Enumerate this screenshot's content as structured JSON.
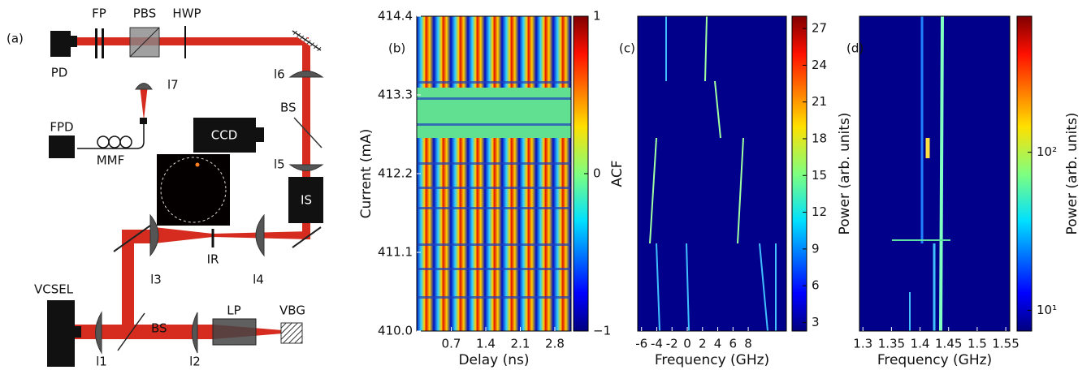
{
  "setup": {
    "label": "(a)",
    "components": {
      "fp": "FP",
      "pbs": "PBS",
      "hwp": "HWP",
      "pd": "PD",
      "l7": "l7",
      "l6": "l6",
      "bs_top": "BS",
      "fpd": "FPD",
      "mmf": "MMF",
      "ccd": "CCD",
      "l5": "l5",
      "is": "IS",
      "ir": "IR",
      "l3": "l3",
      "l4": "l4",
      "vcsel": "VCSEL",
      "bs_bottom": "BS",
      "lp": "LP",
      "vbg": "VBG",
      "l1": "l1",
      "l2": "l2"
    }
  },
  "chart_data": [
    {
      "type": "heatmap",
      "label": "(b)",
      "xlabel": "Delay (ns)",
      "ylabel": "Current (mA)",
      "xlim": [
        0,
        3.13
      ],
      "xticks": [
        0.7,
        1.4,
        2.1,
        2.8
      ],
      "ylim": [
        410,
        414.4
      ],
      "yticks": [
        {
          "value": 410,
          "label": "410.0"
        },
        411.1,
        412.2,
        413.3,
        414.4
      ],
      "colorbar": {
        "label": "ACF",
        "lim": [
          -1,
          1
        ],
        "ticks": [
          {
            "value": -1,
            "label": "−1"
          },
          0,
          1
        ],
        "log": false
      }
    },
    {
      "type": "heatmap",
      "label": "(c)",
      "xlabel": "Frequency (GHz)",
      "xlim": [
        -6.5,
        13
      ],
      "xticks": [
        -6,
        -4,
        -2,
        0,
        2,
        4,
        6,
        8
      ],
      "colorbar": {
        "label": "Power (arb. units)",
        "lim": [
          2.3,
          28
        ],
        "ticks": [
          3,
          6,
          9,
          12,
          15,
          18,
          21,
          24,
          27
        ],
        "log": false
      }
    },
    {
      "type": "heatmap",
      "label": "(d)",
      "xlabel": "Frequency (GHz)",
      "xlim": [
        1.294,
        1.557
      ],
      "xticks": [
        1.3,
        1.35,
        1.4,
        1.45,
        1.5,
        1.55
      ],
      "colorbar": {
        "label": "Power (arb. units)",
        "lim": [
          7.4,
          725
        ],
        "ticks": [
          {
            "value": 10,
            "label": "10¹"
          },
          {
            "value": 100,
            "label": "10²"
          }
        ],
        "log": true
      }
    }
  ]
}
